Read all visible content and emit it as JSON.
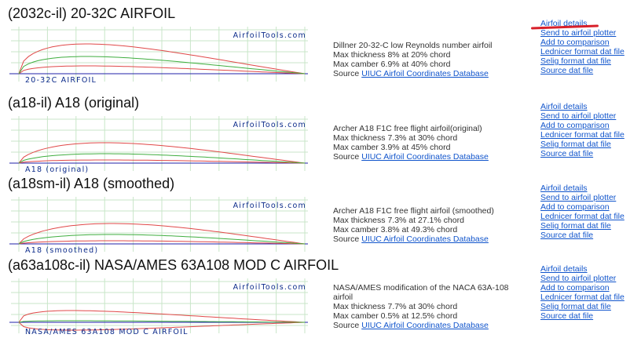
{
  "entries": [
    {
      "title": "(2032c-il) 20-32C AIRFOIL",
      "watermark": "AirfoilTools.com",
      "plot_label": "20-32C AIRFOIL",
      "description": "Dillner 20-32-C low Reynolds number airfoil",
      "thickness": "Max thickness 8% at 20% chord",
      "camber": "Max camber 6.9% at 40% chord",
      "source_prefix": "Source",
      "source_link": "UIUC Airfoil Coordinates Database",
      "links": [
        "Airfoil details",
        "Send to airfoil plotter",
        "Add to comparison",
        "Lednicer format dat file",
        "Selig format dat file",
        "Source dat file"
      ]
    },
    {
      "title": "(a18-il) A18 (original)",
      "watermark": "AirfoilTools.com",
      "plot_label": "A18 (original)",
      "description": "Archer A18 F1C free flight airfoil(original)",
      "thickness": "Max thickness 7.3% at 30% chord",
      "camber": "Max camber 3.9% at 45% chord",
      "source_prefix": "Source",
      "source_link": "UIUC Airfoil Coordinates Database",
      "links": [
        "Airfoil details",
        "Send to airfoil plotter",
        "Add to comparison",
        "Lednicer format dat file",
        "Selig format dat file",
        "Source dat file"
      ]
    },
    {
      "title": "(a18sm-il) A18 (smoothed)",
      "watermark": "AirfoilTools.com",
      "plot_label": "A18 (smoothed)",
      "description": "Archer A18 F1C free flight airfoil (smoothed)",
      "thickness": "Max thickness 7.3% at 27.1% chord",
      "camber": "Max camber 3.8% at 49.3% chord",
      "source_prefix": "Source",
      "source_link": "UIUC Airfoil Coordinates Database",
      "links": [
        "Airfoil details",
        "Send to airfoil plotter",
        "Add to comparison",
        "Lednicer format dat file",
        "Selig format dat file",
        "Source dat file"
      ]
    },
    {
      "title": "(a63a108c-il) NASA/AMES 63A108 MOD C AIRFOIL",
      "watermark": "AirfoilTools.com",
      "plot_label": "NASA/AMES 63A108 MOD C AIRFOIL",
      "description": "NASA/AMES modification of the NACA 63A-108 airfoil",
      "thickness": "Max thickness 7.7% at 30% chord",
      "camber": "Max camber 0.5% at 12.5% chord",
      "source_prefix": "Source",
      "source_link": "UIUC Airfoil Coordinates Database",
      "links": [
        "Airfoil details",
        "Send to airfoil plotter",
        "Add to comparison",
        "Lednicer format dat file",
        "Selig format dat file",
        "Source dat file"
      ]
    }
  ],
  "colors": {
    "link": "#1155cc",
    "airfoil": "#e04848",
    "camber_line": "#3fae3f",
    "chord_line": "#2222aa",
    "grid": "#c8e6c8",
    "watermark": "#0b2a8a",
    "annotation": "#d8202a"
  }
}
